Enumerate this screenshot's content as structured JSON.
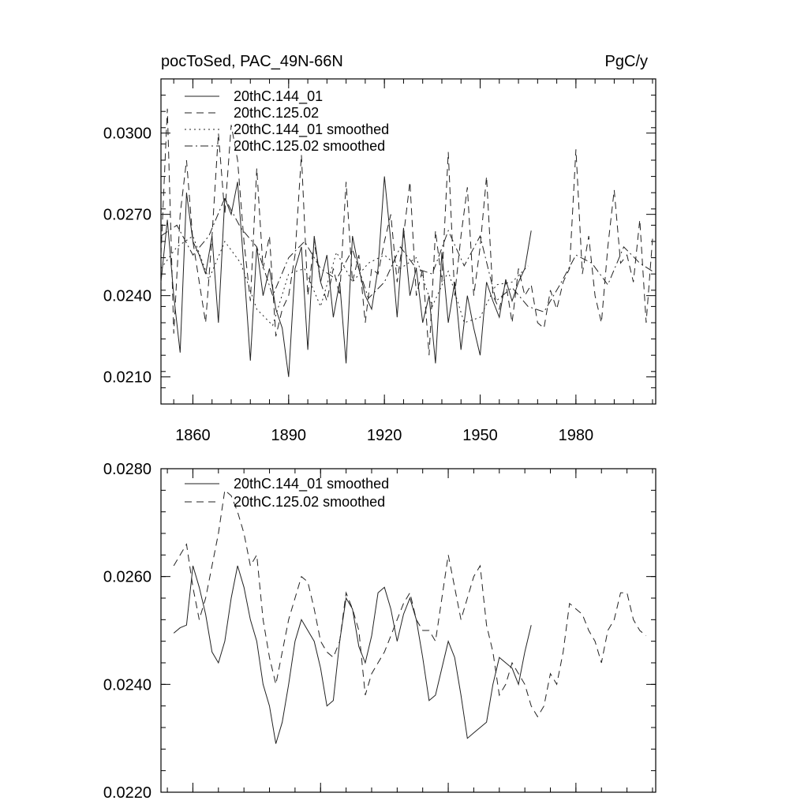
{
  "chart_data": [
    {
      "type": "line",
      "title_left": "pocToSed, PAC_49N-66N",
      "title_right": "PgC/y",
      "xlim": [
        1850,
        2005
      ],
      "ylim": [
        0.02,
        0.032
      ],
      "x_ticks": [
        1860,
        1890,
        1920,
        1950,
        1980
      ],
      "x_tick_labels": [
        "1860",
        "1890",
        "1920",
        "1950",
        "1980"
      ],
      "y_ticks": [
        0.021,
        0.024,
        0.027,
        0.03
      ],
      "y_tick_labels": [
        "0.0210",
        "0.0240",
        "0.0270",
        "0.0300"
      ],
      "legend": [
        "20thC.144_01",
        "20thC.125.02",
        "20thC.144_01 smoothed",
        "20thC.125.02 smoothed"
      ],
      "series": [
        {
          "name": "20thC.144_01",
          "style": "solid",
          "x": [
            1850,
            1852,
            1854,
            1856,
            1858,
            1860,
            1862,
            1864,
            1866,
            1868,
            1870,
            1872,
            1874,
            1876,
            1878,
            1880,
            1882,
            1884,
            1886,
            1888,
            1890,
            1892,
            1894,
            1896,
            1898,
            1900,
            1902,
            1904,
            1906,
            1908,
            1910,
            1912,
            1914,
            1916,
            1918,
            1920,
            1922,
            1924,
            1926,
            1928,
            1930,
            1932,
            1934,
            1936,
            1938,
            1940,
            1942,
            1944,
            1946,
            1948,
            1950,
            1952,
            1954,
            1956,
            1958,
            1960,
            1962,
            1964,
            1966
          ],
          "values": [
            0.0245,
            0.0268,
            0.024,
            0.0219,
            0.0278,
            0.026,
            0.0255,
            0.0248,
            0.0262,
            0.023,
            0.0276,
            0.027,
            0.0282,
            0.025,
            0.0216,
            0.0258,
            0.024,
            0.025,
            0.0235,
            0.0228,
            0.021,
            0.025,
            0.0258,
            0.022,
            0.0262,
            0.0245,
            0.0255,
            0.0232,
            0.0245,
            0.0215,
            0.0262,
            0.025,
            0.024,
            0.0235,
            0.025,
            0.0284,
            0.026,
            0.0232,
            0.0265,
            0.024,
            0.025,
            0.023,
            0.024,
            0.0215,
            0.0256,
            0.023,
            0.0245,
            0.022,
            0.024,
            0.0228,
            0.0218,
            0.0245,
            0.0238,
            0.0232,
            0.0246,
            0.0238,
            0.0245,
            0.025,
            0.0264
          ]
        },
        {
          "name": "20thC.125.02",
          "style": "dashed",
          "x": [
            1850,
            1852,
            1854,
            1856,
            1858,
            1860,
            1862,
            1864,
            1866,
            1868,
            1870,
            1872,
            1874,
            1876,
            1878,
            1880,
            1882,
            1884,
            1886,
            1888,
            1890,
            1892,
            1894,
            1896,
            1898,
            1900,
            1902,
            1904,
            1906,
            1908,
            1910,
            1912,
            1914,
            1916,
            1918,
            1920,
            1922,
            1924,
            1926,
            1928,
            1930,
            1932,
            1934,
            1936,
            1938,
            1940,
            1942,
            1944,
            1946,
            1948,
            1950,
            1952,
            1954,
            1956,
            1958,
            1960,
            1962,
            1964,
            1966,
            1968,
            1970,
            1972,
            1974,
            1976,
            1978,
            1980,
            1982,
            1984,
            1986,
            1988,
            1990,
            1992,
            1994,
            1996,
            1998,
            2000,
            2002,
            2004
          ],
          "values": [
            0.0255,
            0.0309,
            0.0226,
            0.027,
            0.029,
            0.026,
            0.0245,
            0.023,
            0.0262,
            0.03,
            0.027,
            0.0303,
            0.029,
            0.026,
            0.0238,
            0.0287,
            0.025,
            0.0262,
            0.0225,
            0.0235,
            0.024,
            0.0255,
            0.0292,
            0.024,
            0.026,
            0.0245,
            0.0238,
            0.025,
            0.024,
            0.0282,
            0.0245,
            0.0255,
            0.023,
            0.025,
            0.0248,
            0.026,
            0.027,
            0.0245,
            0.0262,
            0.0282,
            0.024,
            0.025,
            0.0218,
            0.0264,
            0.0245,
            0.0293,
            0.024,
            0.0262,
            0.028,
            0.024,
            0.0258,
            0.0284,
            0.024,
            0.0235,
            0.0245,
            0.023,
            0.025,
            0.024,
            0.0244,
            0.023,
            0.0228,
            0.0242,
            0.0235,
            0.0245,
            0.025,
            0.0294,
            0.0248,
            0.0262,
            0.024,
            0.023,
            0.0258,
            0.0279,
            0.0252,
            0.0255,
            0.0245,
            0.0268,
            0.023,
            0.0261
          ]
        },
        {
          "name": "20thC.144_01 smoothed",
          "style": "dotted",
          "x": [
            1850,
            1855,
            1860,
            1865,
            1870,
            1875,
            1880,
            1885,
            1890,
            1895,
            1900,
            1905,
            1910,
            1915,
            1920,
            1925,
            1930,
            1935,
            1940,
            1945,
            1950,
            1955,
            1960,
            1965
          ],
          "values": [
            0.025,
            0.0258,
            0.0262,
            0.0246,
            0.026,
            0.0252,
            0.0235,
            0.0229,
            0.0248,
            0.025,
            0.0236,
            0.0256,
            0.0245,
            0.0252,
            0.0255,
            0.025,
            0.0254,
            0.0236,
            0.0249,
            0.023,
            0.0232,
            0.0244,
            0.0245,
            0.0251
          ]
        },
        {
          "name": "20thC.125.02 smoothed",
          "style": "dashdot",
          "x": [
            1850,
            1855,
            1860,
            1865,
            1870,
            1875,
            1880,
            1885,
            1890,
            1895,
            1900,
            1905,
            1910,
            1915,
            1920,
            1925,
            1930,
            1935,
            1940,
            1945,
            1950,
            1955,
            1960,
            1965,
            1970,
            1975,
            1980,
            1985,
            1990,
            1995,
            2000,
            2004
          ],
          "values": [
            0.0262,
            0.0266,
            0.0255,
            0.0262,
            0.0276,
            0.0265,
            0.0258,
            0.024,
            0.0254,
            0.026,
            0.025,
            0.0246,
            0.0257,
            0.0239,
            0.0245,
            0.0258,
            0.025,
            0.0248,
            0.0264,
            0.0251,
            0.0262,
            0.0238,
            0.0243,
            0.0236,
            0.0234,
            0.0244,
            0.0255,
            0.0252,
            0.0244,
            0.0258,
            0.0252,
            0.0249
          ]
        }
      ]
    },
    {
      "type": "line",
      "xlim": [
        1850,
        2005
      ],
      "ylim": [
        0.022,
        0.028
      ],
      "x_ticks": [
        1860,
        1900,
        1940,
        1980
      ],
      "y_ticks": [
        0.022,
        0.024,
        0.026,
        0.028
      ],
      "y_tick_labels": [
        "0.0220",
        "0.0240",
        "0.0260",
        "0.0280"
      ],
      "legend": [
        "20thC.144_01 smoothed",
        "20thC.125.02 smoothed"
      ],
      "series": [
        {
          "name": "20thC.144_01 smoothed",
          "style": "solid",
          "x": [
            1854,
            1856,
            1858,
            1860,
            1862,
            1864,
            1866,
            1868,
            1870,
            1872,
            1874,
            1876,
            1878,
            1880,
            1882,
            1884,
            1886,
            1888,
            1890,
            1892,
            1894,
            1896,
            1898,
            1900,
            1902,
            1904,
            1906,
            1908,
            1910,
            1912,
            1914,
            1916,
            1918,
            1920,
            1922,
            1924,
            1926,
            1928,
            1930,
            1932,
            1934,
            1936,
            1938,
            1940,
            1942,
            1944,
            1946,
            1948,
            1950,
            1952,
            1954,
            1956,
            1958,
            1960,
            1962,
            1964,
            1966
          ],
          "values": [
            0.02495,
            0.02505,
            0.0251,
            0.0262,
            0.0258,
            0.0253,
            0.0246,
            0.0244,
            0.0248,
            0.0256,
            0.0262,
            0.0258,
            0.0252,
            0.0248,
            0.024,
            0.0236,
            0.0229,
            0.0233,
            0.024,
            0.0248,
            0.0252,
            0.025,
            0.0248,
            0.0243,
            0.0236,
            0.0237,
            0.0248,
            0.0256,
            0.0254,
            0.0247,
            0.0244,
            0.0249,
            0.0257,
            0.0258,
            0.0254,
            0.0248,
            0.0253,
            0.0256,
            0.0252,
            0.0245,
            0.0237,
            0.0238,
            0.0243,
            0.0248,
            0.0245,
            0.0238,
            0.023,
            0.0231,
            0.0232,
            0.0233,
            0.024,
            0.0245,
            0.0244,
            0.0243,
            0.024,
            0.0246,
            0.0251
          ]
        },
        {
          "name": "20thC.125.02 smoothed",
          "style": "dashed",
          "x": [
            1854,
            1856,
            1858,
            1860,
            1862,
            1864,
            1866,
            1868,
            1870,
            1872,
            1874,
            1876,
            1878,
            1880,
            1882,
            1884,
            1886,
            1888,
            1890,
            1892,
            1894,
            1896,
            1898,
            1900,
            1902,
            1904,
            1906,
            1908,
            1910,
            1912,
            1914,
            1916,
            1918,
            1920,
            1922,
            1924,
            1926,
            1928,
            1930,
            1932,
            1934,
            1936,
            1938,
            1940,
            1942,
            1944,
            1946,
            1948,
            1950,
            1952,
            1954,
            1956,
            1958,
            1960,
            1962,
            1964,
            1966,
            1968,
            1970,
            1972,
            1974,
            1976,
            1978,
            1980,
            1982,
            1984,
            1986,
            1988,
            1990,
            1992,
            1994,
            1996,
            1998,
            2000,
            2002
          ],
          "values": [
            0.0262,
            0.0264,
            0.0266,
            0.0258,
            0.0252,
            0.0256,
            0.0262,
            0.0268,
            0.0276,
            0.0275,
            0.0272,
            0.0268,
            0.0262,
            0.0264,
            0.0252,
            0.0245,
            0.024,
            0.0246,
            0.0252,
            0.0256,
            0.026,
            0.0259,
            0.0254,
            0.0248,
            0.0246,
            0.0245,
            0.0248,
            0.0257,
            0.0254,
            0.025,
            0.0238,
            0.0242,
            0.0244,
            0.0246,
            0.0249,
            0.0252,
            0.0255,
            0.0257,
            0.0252,
            0.025,
            0.025,
            0.0248,
            0.0256,
            0.0264,
            0.0258,
            0.0252,
            0.0256,
            0.026,
            0.0262,
            0.0251,
            0.0246,
            0.0238,
            0.024,
            0.0244,
            0.0242,
            0.024,
            0.0236,
            0.0234,
            0.0236,
            0.0242,
            0.024,
            0.0246,
            0.0255,
            0.0254,
            0.0253,
            0.025,
            0.0248,
            0.0244,
            0.025,
            0.0252,
            0.0257,
            0.0257,
            0.0252,
            0.025,
            0.0249
          ]
        }
      ]
    }
  ]
}
